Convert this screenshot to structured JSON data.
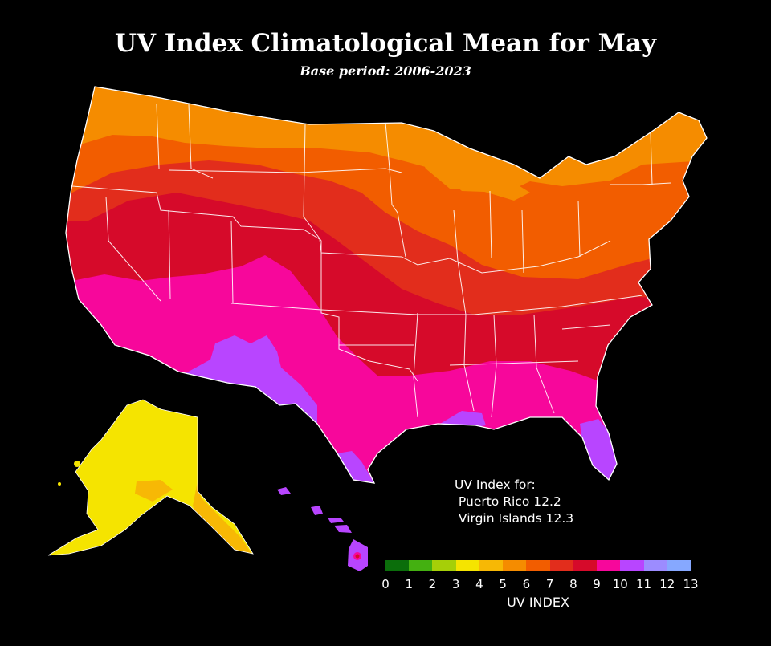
{
  "map": {
    "title": "UV Index Climatological Mean for May",
    "subtitle": "Base period: 2006-2023",
    "regions": [
      {
        "name": "conus"
      },
      {
        "name": "alaska"
      },
      {
        "name": "hawaii"
      }
    ]
  },
  "note": {
    "line1": "UV Index for:",
    "line2": " Puerto Rico 12.2",
    "line3": " Virgin Islands 12.3"
  },
  "legend": {
    "title": "UV INDEX",
    "ticks": [
      "0",
      "1",
      "2",
      "3",
      "4",
      "5",
      "6",
      "7",
      "8",
      "9",
      "10",
      "11",
      "12",
      "13"
    ],
    "colors": [
      "#0b6e0b",
      "#44b011",
      "#a6cf08",
      "#f5e400",
      "#f7b805",
      "#f58c00",
      "#f25d00",
      "#e22d1c",
      "#d60a2a",
      "#f7079b",
      "#b845ff",
      "#9c8cff",
      "#86a8ff"
    ]
  },
  "palette": {
    "background": "#000000",
    "border": "#ffffff",
    "uv4": "#f5e400",
    "uv5": "#f7b805",
    "uv6": "#f58c00",
    "uv7": "#f25d00",
    "uv8": "#e22d1c",
    "uv9": "#d60a2a",
    "uv10": "#f7079b",
    "uv11": "#b845ff"
  }
}
